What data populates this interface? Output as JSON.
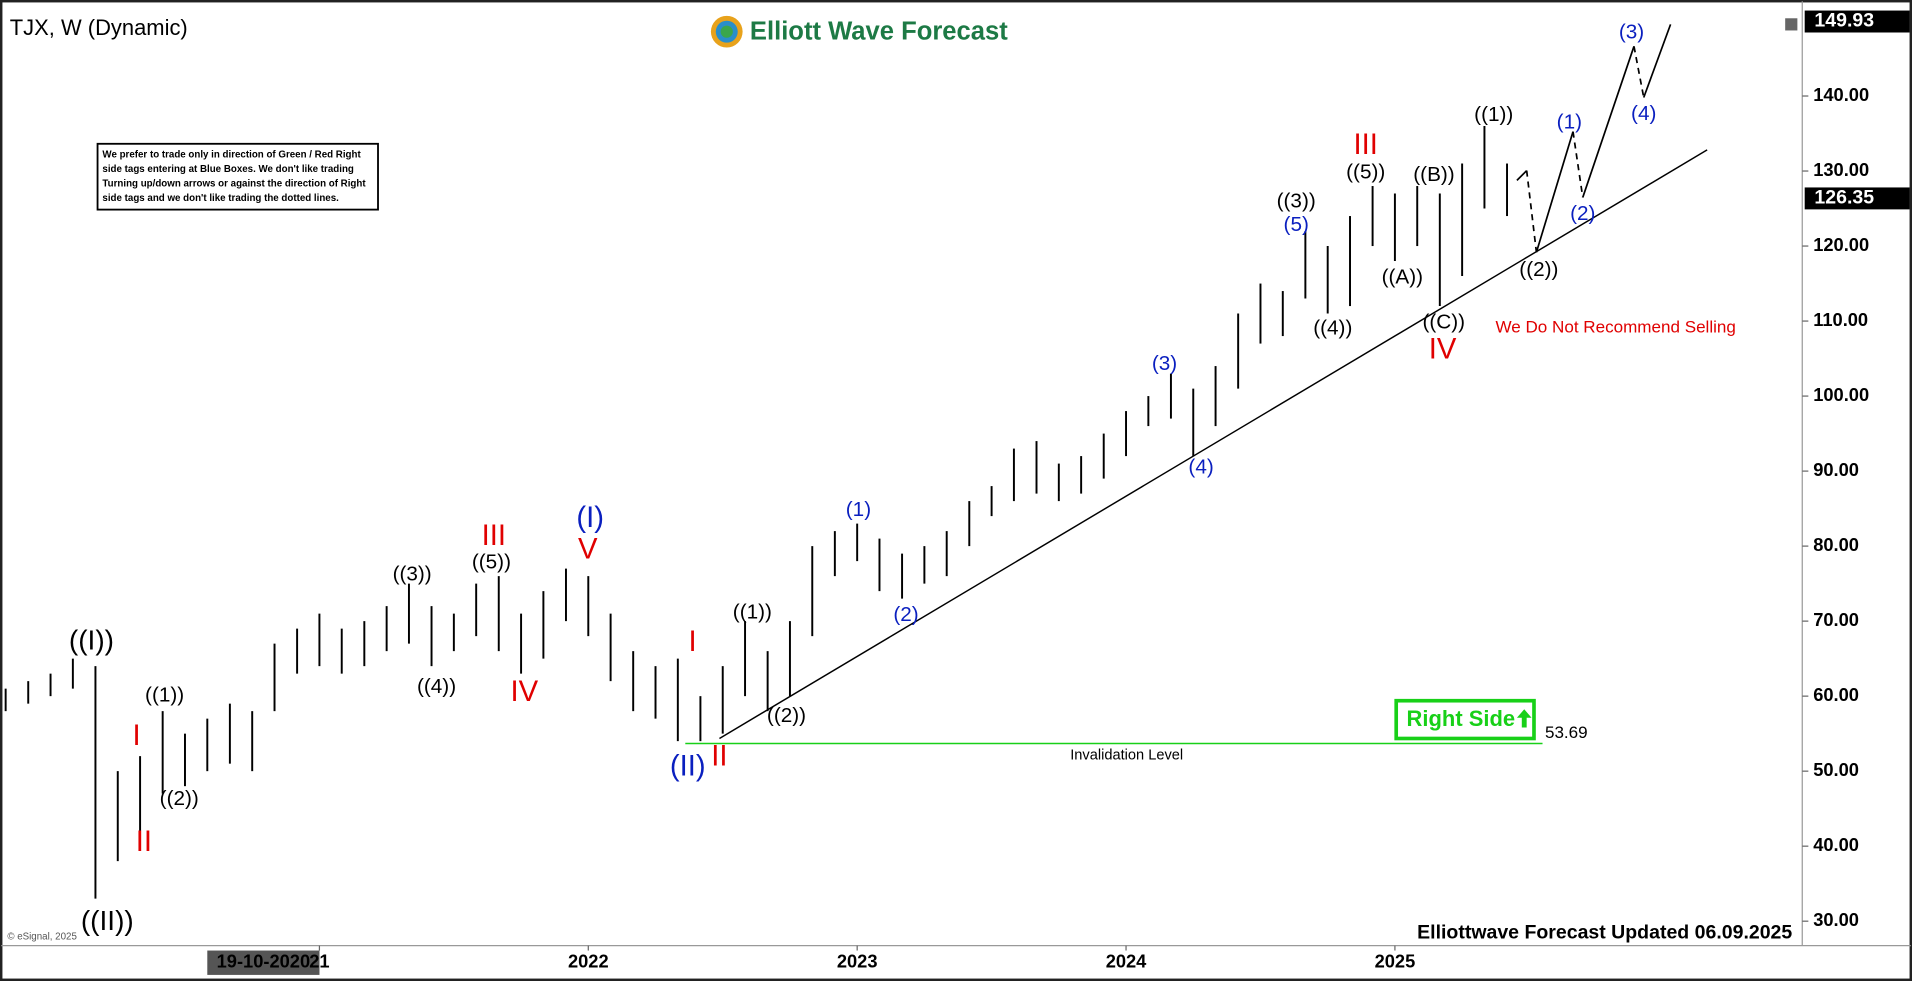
{
  "chart_data": {
    "type": "ohlc",
    "title": "TJX, W (Dynamic)",
    "logo": "Elliott Wave Forecast",
    "note": [
      "We prefer to trade only in direction of Green / Red Right",
      "side tags entering at Blue Boxes. We don't like trading",
      "Turning up/down arrows or against the direction of Right",
      "side tags and we don't like trading the dotted lines."
    ],
    "footer": "Elliottwave Forecast Updated 06.09.2025",
    "copyright": "© eSignal, 2025",
    "recommendation": "We Do Not Recommend Selling",
    "right_side": "Right Side",
    "cursor_label": "19-10-2020",
    "x": [
      2019.833,
      2019.917,
      2020,
      2020.083,
      2020.167,
      2020.25,
      2020.333,
      2020.417,
      2020.5,
      2020.583,
      2020.667,
      2020.75,
      2020.833,
      2020.917,
      2021,
      2021.083,
      2021.167,
      2021.25,
      2021.333,
      2021.417,
      2021.5,
      2021.583,
      2021.667,
      2021.75,
      2021.833,
      2021.917,
      2022,
      2022.083,
      2022.167,
      2022.25,
      2022.333,
      2022.417,
      2022.5,
      2022.583,
      2022.667,
      2022.75,
      2022.833,
      2022.917,
      2023,
      2023.083,
      2023.167,
      2023.25,
      2023.333,
      2023.417,
      2023.5,
      2023.583,
      2023.667,
      2023.75,
      2023.833,
      2023.917,
      2024,
      2024.083,
      2024.167,
      2024.25,
      2024.333,
      2024.417,
      2024.5,
      2024.583,
      2024.667,
      2024.75,
      2024.833,
      2024.917,
      2025,
      2025.083,
      2025.167,
      2025.25,
      2025.333,
      2025.417
    ],
    "high": [
      61,
      62,
      63,
      65,
      64,
      50,
      52,
      58,
      55,
      57,
      59,
      58,
      67,
      69,
      71,
      69,
      70,
      72,
      75,
      72,
      71,
      75,
      76,
      71,
      74,
      77,
      76,
      71,
      66,
      64,
      65,
      60,
      64,
      70,
      66,
      70,
      80,
      82,
      83,
      81,
      79,
      80,
      82,
      86,
      88,
      93,
      94,
      91,
      92,
      95,
      98,
      100,
      103,
      101,
      104,
      111,
      115,
      114,
      122,
      120,
      124,
      128,
      127,
      128,
      127,
      131,
      136,
      131
    ],
    "low": [
      58,
      59,
      60,
      61,
      33,
      38,
      42,
      47,
      48,
      50,
      51,
      50,
      58,
      63,
      64,
      63,
      64,
      66,
      67,
      64,
      66,
      68,
      66,
      63,
      65,
      70,
      68,
      62,
      58,
      57,
      54,
      54,
      55,
      60,
      58,
      60,
      68,
      76,
      78,
      74,
      73,
      75,
      76,
      80,
      84,
      86,
      87,
      86,
      87,
      89,
      92,
      96,
      97,
      92,
      96,
      101,
      107,
      108,
      113,
      111,
      112,
      120,
      118,
      120,
      112,
      116,
      125,
      124
    ],
    "xlim": [
      2019.812,
      2026.515
    ],
    "xticks": [
      {
        "value": 2021,
        "label": "21"
      },
      2022,
      2023,
      2024,
      2025
    ],
    "ylim": [
      26.9,
      151.5
    ],
    "yticks": [
      {
        "value": 30,
        "label": "30.00"
      },
      {
        "value": 40,
        "label": "40.00"
      },
      {
        "value": 50,
        "label": "50.00"
      },
      {
        "value": 60,
        "label": "60.00"
      },
      {
        "value": 70,
        "label": "70.00"
      },
      {
        "value": 80,
        "label": "80.00"
      },
      {
        "value": 90,
        "label": "90.00"
      },
      {
        "value": 100,
        "label": "100.00"
      },
      {
        "value": 110,
        "label": "110.00"
      },
      {
        "value": 120,
        "label": "120.00"
      },
      {
        "value": 130,
        "label": "130.00"
      },
      {
        "value": 140,
        "label": "140.00"
      }
    ],
    "price_labels": [
      149.93,
      126.35
    ],
    "invalidation": {
      "value": 53.69,
      "label": "Invalidation Level"
    },
    "color": "#000000",
    "annotations": [
      {
        "text": "((I))",
        "color": "#000000"
      },
      {
        "text": "((II))",
        "color": "#000000"
      },
      {
        "text": "I",
        "color": "#e00000"
      },
      {
        "text": "II",
        "color": "#e00000"
      },
      {
        "text": "((1))",
        "color": "#000000"
      },
      {
        "text": "((2))",
        "color": "#000000"
      },
      {
        "text": "((3))",
        "color": "#000000"
      },
      {
        "text": "((4))",
        "color": "#000000"
      },
      {
        "text": "((5))",
        "color": "#000000"
      },
      {
        "text": "III",
        "color": "#e00000"
      },
      {
        "text": "IV",
        "color": "#e00000"
      },
      {
        "text": "(I)",
        "color": "#0a1fbf"
      },
      {
        "text": "V",
        "color": "#e00000"
      },
      {
        "text": "I",
        "color": "#e00000"
      },
      {
        "text": "(II)",
        "color": "#0a1fbf"
      },
      {
        "text": "II",
        "color": "#e00000"
      },
      {
        "text": "((1))",
        "color": "#000000"
      },
      {
        "text": "((2))",
        "color": "#000000"
      },
      {
        "text": "(1)",
        "color": "#0a1fbf"
      },
      {
        "text": "(2)",
        "color": "#0a1fbf"
      },
      {
        "text": "(3)",
        "color": "#0a1fbf"
      },
      {
        "text": "(4)",
        "color": "#0a1fbf"
      },
      {
        "text": "((3))",
        "color": "#000000"
      },
      {
        "text": "(5)",
        "color": "#0a1fbf"
      },
      {
        "text": "((4))",
        "color": "#000000"
      },
      {
        "text": "((5))",
        "color": "#000000"
      },
      {
        "text": "III",
        "color": "#e00000"
      },
      {
        "text": "((A))",
        "color": "#000000"
      },
      {
        "text": "((B))",
        "color": "#000000"
      },
      {
        "text": "((C))",
        "color": "#000000"
      },
      {
        "text": "IV",
        "color": "#e00000"
      },
      {
        "text": "((1))",
        "color": "#000000"
      },
      {
        "text": "((2))",
        "color": "#000000"
      },
      {
        "text": "(1)",
        "color": "#0a1fbf"
      },
      {
        "text": "(2)",
        "color": "#0a1fbf"
      },
      {
        "text": "(3)",
        "color": "#0a1fbf"
      },
      {
        "text": "(4)",
        "color": "#0a1fbf"
      }
    ]
  }
}
